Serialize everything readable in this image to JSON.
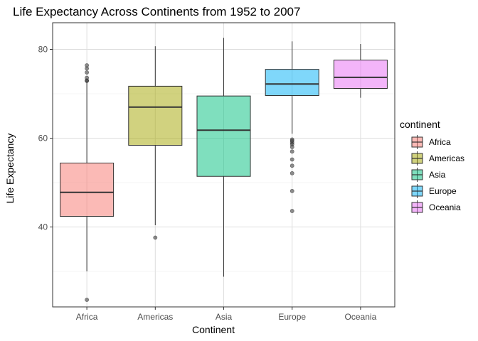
{
  "chart_data": {
    "type": "box",
    "title": "Life Expectancy Across Continents from 1952 to 2007",
    "xlabel": "Continent",
    "ylabel": "Life Expectancy",
    "ylim": [
      22,
      86
    ],
    "yticks": [
      40,
      60,
      80
    ],
    "grid": true,
    "legend": {
      "title": "continent",
      "position": "right"
    },
    "categories": [
      "Africa",
      "Americas",
      "Asia",
      "Europe",
      "Oceania"
    ],
    "series": [
      {
        "name": "Africa",
        "color": "#F8766D",
        "lower_whisker": 30.0,
        "q1": 42.4,
        "median": 47.8,
        "q3": 54.4,
        "upper_whisker": 72.8,
        "outliers": [
          23.6,
          72.9,
          73.0,
          73.6,
          74.8,
          75.7,
          76.4
        ]
      },
      {
        "name": "Americas",
        "color": "#A3A500",
        "lower_whisker": 40.4,
        "q1": 58.4,
        "median": 67.0,
        "q3": 71.7,
        "upper_whisker": 80.7,
        "outliers": [
          37.6
        ]
      },
      {
        "name": "Asia",
        "color": "#00BF7D",
        "lower_whisker": 28.8,
        "q1": 51.4,
        "median": 61.8,
        "q3": 69.5,
        "upper_whisker": 82.6,
        "outliers": []
      },
      {
        "name": "Europe",
        "color": "#00B0F6",
        "lower_whisker": 61.0,
        "q1": 69.6,
        "median": 72.2,
        "q3": 75.5,
        "upper_whisker": 81.8,
        "outliers": [
          43.6,
          48.1,
          52.1,
          53.8,
          55.2,
          57.0,
          58.0,
          58.6,
          59.0,
          59.4,
          59.7
        ]
      },
      {
        "name": "Oceania",
        "color": "#E76BF3",
        "lower_whisker": 69.1,
        "q1": 71.2,
        "median": 73.7,
        "q3": 77.6,
        "upper_whisker": 81.2,
        "outliers": []
      }
    ]
  }
}
